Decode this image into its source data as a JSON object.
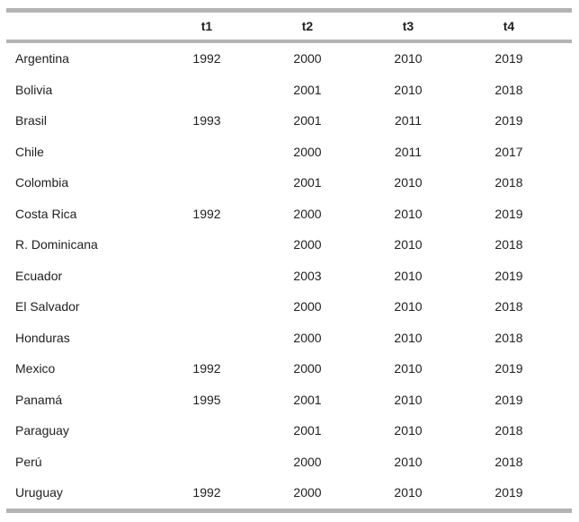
{
  "colors": {
    "rule": "#b4b4b4",
    "text": "#1f1f1f",
    "background": "#ffffff"
  },
  "table": {
    "columns": [
      "",
      "t1",
      "t2",
      "t3",
      "t4"
    ],
    "rows": [
      {
        "country": "Argentina",
        "values": [
          "1992",
          "2000",
          "2010",
          "2019"
        ]
      },
      {
        "country": "Bolivia",
        "values": [
          "",
          "2001",
          "2010",
          "2018"
        ]
      },
      {
        "country": "Brasil",
        "values": [
          "1993",
          "2001",
          "2011",
          "2019"
        ]
      },
      {
        "country": "Chile",
        "values": [
          "",
          "2000",
          "2011",
          "2017"
        ]
      },
      {
        "country": "Colombia",
        "values": [
          "",
          "2001",
          "2010",
          "2018"
        ]
      },
      {
        "country": "Costa Rica",
        "values": [
          "1992",
          "2000",
          "2010",
          "2019"
        ]
      },
      {
        "country": "R. Dominicana",
        "values": [
          "",
          "2000",
          "2010",
          "2018"
        ]
      },
      {
        "country": "Ecuador",
        "values": [
          "",
          "2003",
          "2010",
          "2019"
        ]
      },
      {
        "country": "El Salvador",
        "values": [
          "",
          "2000",
          "2010",
          "2018"
        ]
      },
      {
        "country": "Honduras",
        "values": [
          "",
          "2000",
          "2010",
          "2018"
        ]
      },
      {
        "country": "Mexico",
        "values": [
          "1992",
          "2000",
          "2010",
          "2019"
        ]
      },
      {
        "country": "Panamá",
        "values": [
          "1995",
          "2001",
          "2010",
          "2019"
        ]
      },
      {
        "country": "Paraguay",
        "values": [
          "",
          "2001",
          "2010",
          "2018"
        ]
      },
      {
        "country": "Perú",
        "values": [
          "",
          "2000",
          "2010",
          "2018"
        ]
      },
      {
        "country": "Uruguay",
        "values": [
          "1992",
          "2000",
          "2010",
          "2019"
        ]
      }
    ]
  }
}
